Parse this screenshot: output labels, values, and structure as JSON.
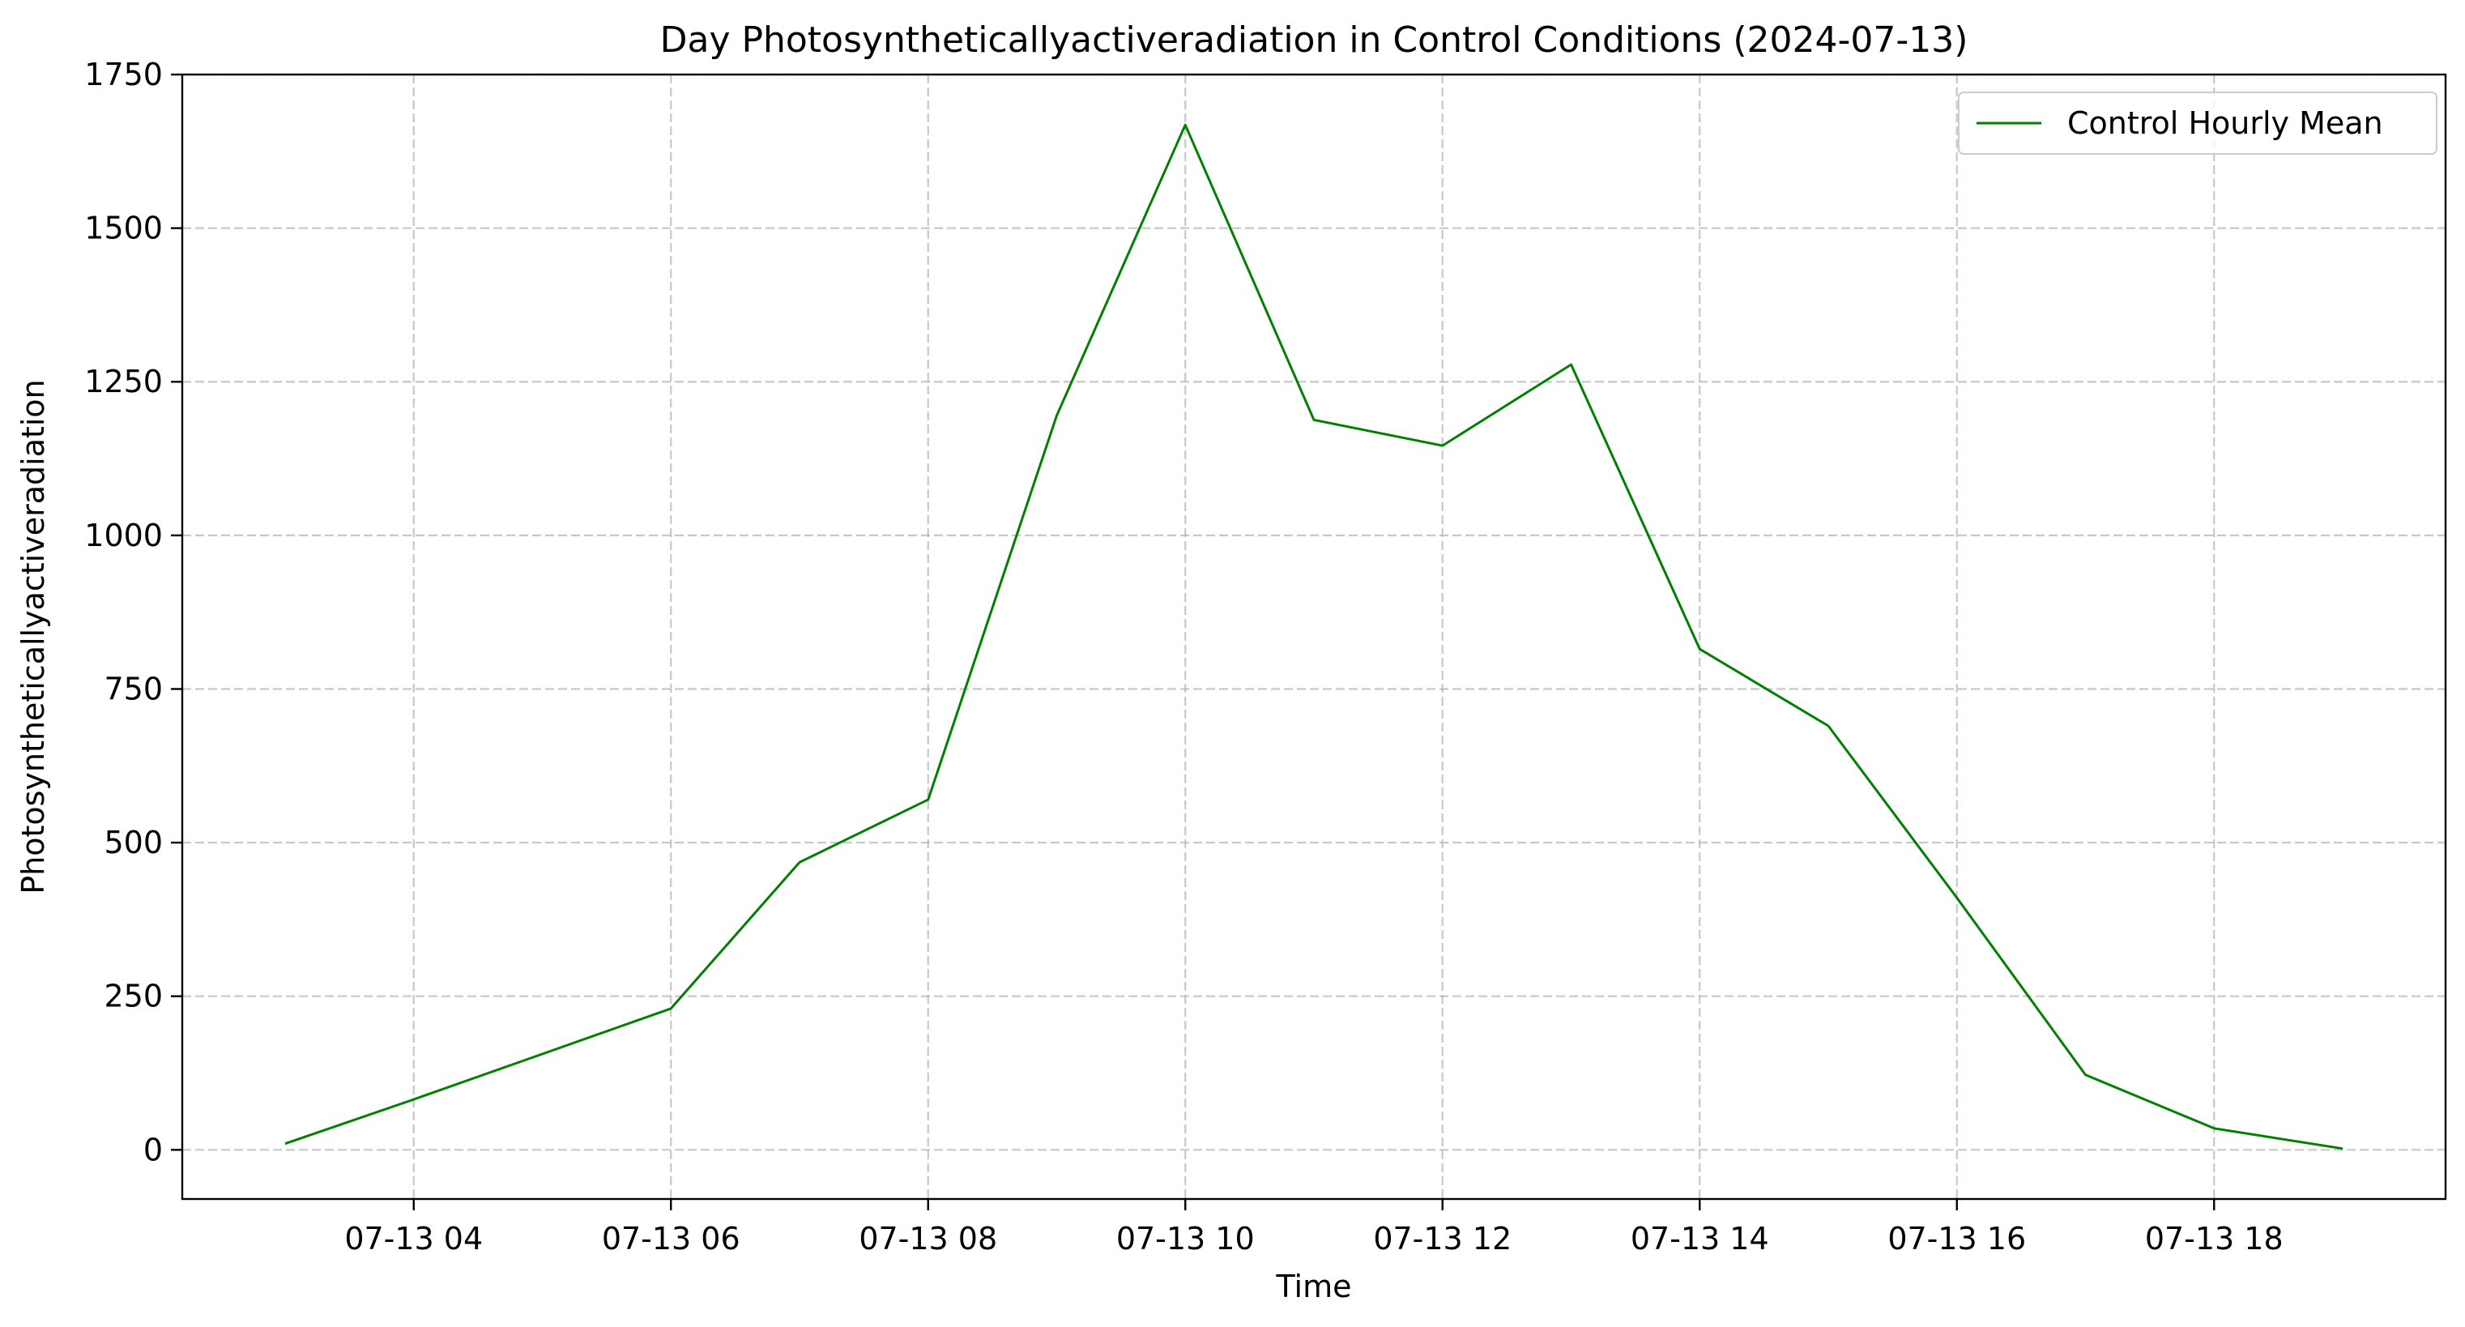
{
  "chart_data": {
    "type": "line",
    "title": "Day Photosyntheticallyactiveradiation in Control Conditions (2024-07-13)",
    "xlabel": "Time",
    "ylabel": "Photosyntheticallyactiveradiation",
    "date": "2024-07-13",
    "x": [
      "03:00",
      "04:00",
      "05:00",
      "06:00",
      "07:00",
      "08:00",
      "09:00",
      "10:00",
      "11:00",
      "12:00",
      "13:00",
      "14:00",
      "15:00",
      "16:00",
      "17:00",
      "18:00",
      "19:00"
    ],
    "xlim": [
      "02:12",
      "19:48"
    ],
    "ylim": [
      -80,
      1750
    ],
    "x_ticks": [
      {
        "value": "04:00",
        "label": "07-13 04"
      },
      {
        "value": "06:00",
        "label": "07-13 06"
      },
      {
        "value": "08:00",
        "label": "07-13 08"
      },
      {
        "value": "10:00",
        "label": "07-13 10"
      },
      {
        "value": "12:00",
        "label": "07-13 12"
      },
      {
        "value": "14:00",
        "label": "07-13 14"
      },
      {
        "value": "16:00",
        "label": "07-13 16"
      },
      {
        "value": "18:00",
        "label": "07-13 18"
      }
    ],
    "y_ticks": [
      {
        "value": 0,
        "label": "0"
      },
      {
        "value": 250,
        "label": "250"
      },
      {
        "value": 500,
        "label": "500"
      },
      {
        "value": 750,
        "label": "750"
      },
      {
        "value": 1000,
        "label": "1000"
      },
      {
        "value": 1250,
        "label": "1250"
      },
      {
        "value": 1500,
        "label": "1500"
      },
      {
        "value": 1750,
        "label": "1750"
      }
    ],
    "grid": true,
    "legend_position": "top-right",
    "series": [
      {
        "name": "Control Hourly Mean",
        "color": "#008000",
        "values": [
          10,
          82,
          156,
          230,
          468,
          570,
          1195,
          1668,
          1188,
          1146,
          1278,
          815,
          690,
          410,
          122,
          35,
          2
        ]
      }
    ]
  }
}
